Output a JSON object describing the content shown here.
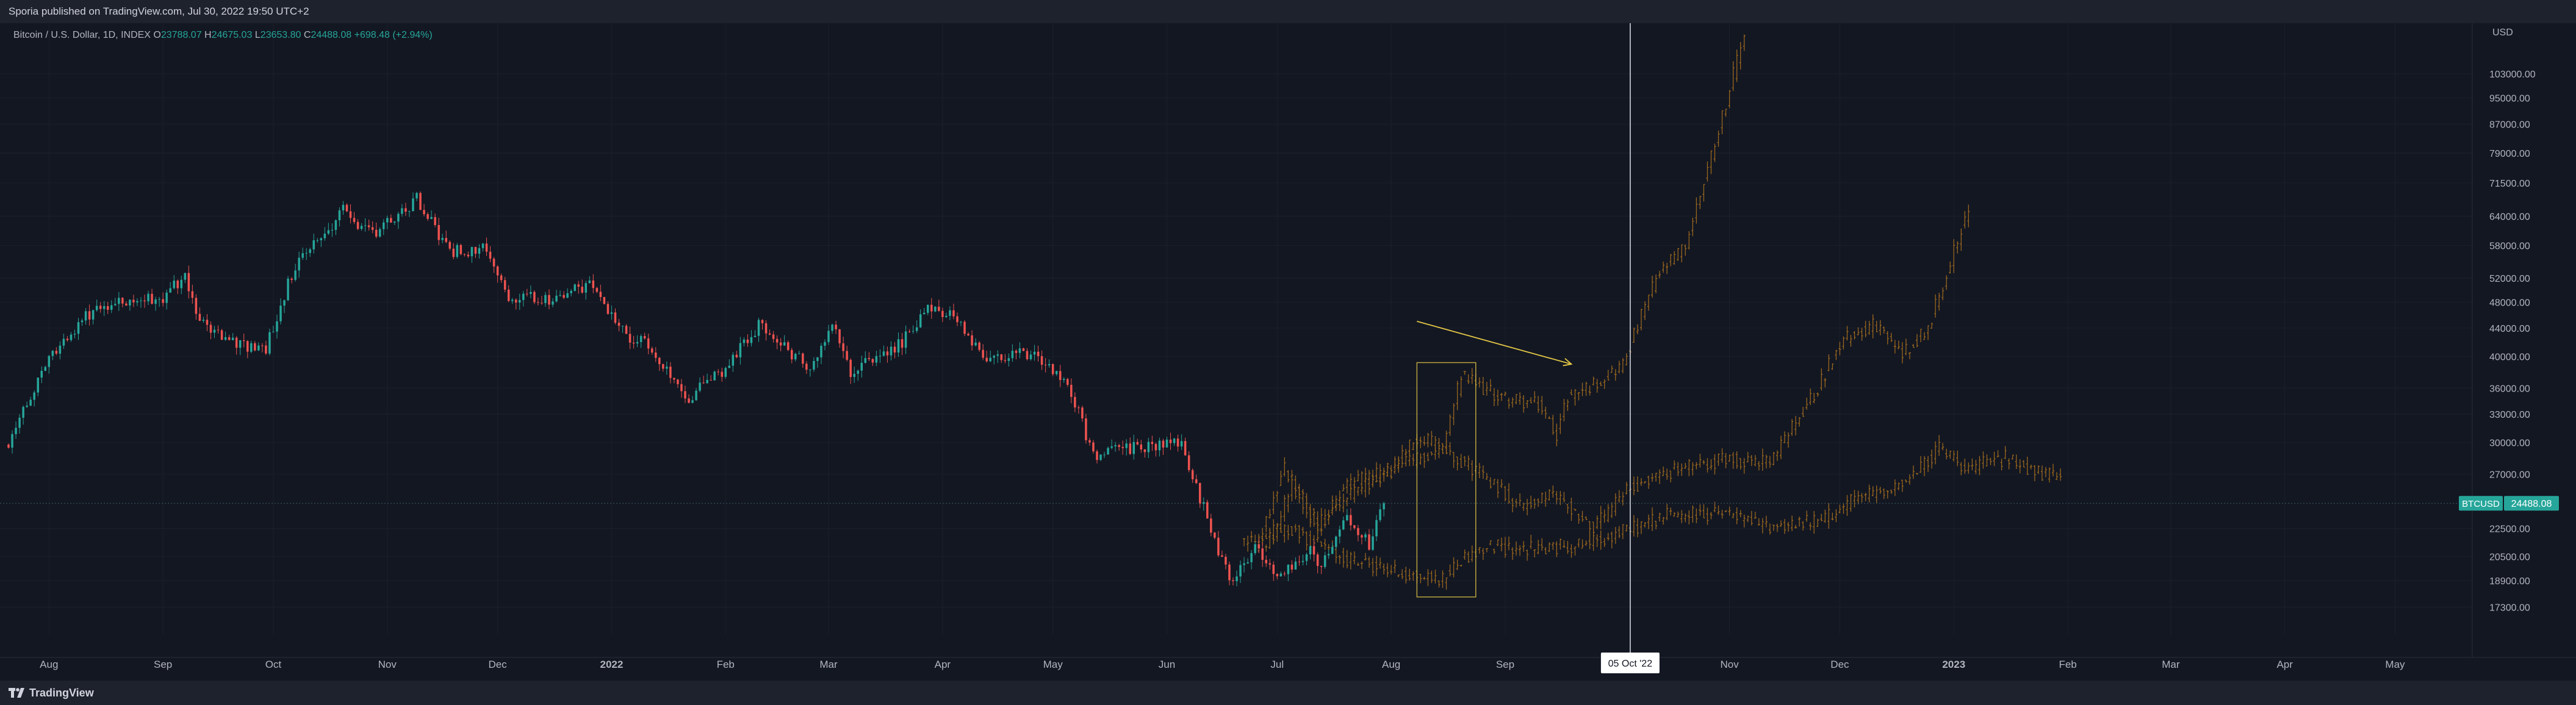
{
  "header": {
    "published": "Sporia published on TradingView.com, Jul 30, 2022 19:50 UTC+2"
  },
  "footer": {
    "brand": "TradingView"
  },
  "colors": {
    "background": "#131722",
    "up": "#26a69a",
    "down": "#ef5350",
    "projection": "#a06a1e",
    "annotation": "#e3c746",
    "price_badge": "#26a69a",
    "crosshair": "#e0e3eb"
  },
  "chart_data": {
    "type": "candlestick",
    "symbol": "Bitcoin / U.S. Dollar, 1D, INDEX",
    "ohlc_summary": {
      "O": "23788.07",
      "H": "24675.03",
      "L": "23653.80",
      "C": "24488.08",
      "change": "+698.48 (+2.94%)"
    },
    "y_scale": "log",
    "y_axis_unit": "USD",
    "y_ticks": [
      103000,
      95000,
      87000,
      79000,
      71500,
      64000,
      58000,
      52000,
      48000,
      44000,
      40000,
      36000,
      33000,
      30000,
      27000,
      22500,
      20500,
      18900,
      17300
    ],
    "y_tick_labels": [
      "103000.00",
      "95000.00",
      "87000.00",
      "79000.00",
      "71500.00",
      "64000.00",
      "58000.00",
      "52000.00",
      "48000.00",
      "44000.00",
      "40000.00",
      "36000.00",
      "33000.00",
      "30000.00",
      "27000.00",
      "22500.00",
      "20500.00",
      "18900.00",
      "17300.00"
    ],
    "ylim": [
      15800,
      122000
    ],
    "x_range": [
      "2021-07-21",
      "2023-05-20"
    ],
    "x_ticks": [
      {
        "date": "2021-08-01",
        "label": "Aug",
        "bold": false
      },
      {
        "date": "2021-09-01",
        "label": "Sep",
        "bold": false
      },
      {
        "date": "2021-10-01",
        "label": "Oct",
        "bold": false
      },
      {
        "date": "2021-11-01",
        "label": "Nov",
        "bold": false
      },
      {
        "date": "2021-12-01",
        "label": "Dec",
        "bold": false
      },
      {
        "date": "2022-01-01",
        "label": "2022",
        "bold": true
      },
      {
        "date": "2022-02-01",
        "label": "Feb",
        "bold": false
      },
      {
        "date": "2022-03-01",
        "label": "Mar",
        "bold": false
      },
      {
        "date": "2022-04-01",
        "label": "Apr",
        "bold": false
      },
      {
        "date": "2022-05-01",
        "label": "May",
        "bold": false
      },
      {
        "date": "2022-06-01",
        "label": "Jun",
        "bold": false
      },
      {
        "date": "2022-07-01",
        "label": "Jul",
        "bold": false
      },
      {
        "date": "2022-08-01",
        "label": "Aug",
        "bold": false
      },
      {
        "date": "2022-09-01",
        "label": "Sep",
        "bold": false
      },
      {
        "date": "2022-11-01",
        "label": "Nov",
        "bold": false
      },
      {
        "date": "2022-12-01",
        "label": "Dec",
        "bold": false
      },
      {
        "date": "2023-01-01",
        "label": "2023",
        "bold": true
      },
      {
        "date": "2023-02-01",
        "label": "Feb",
        "bold": false
      },
      {
        "date": "2023-03-01",
        "label": "Mar",
        "bold": false
      },
      {
        "date": "2023-04-01",
        "label": "Apr",
        "bold": false
      },
      {
        "date": "2023-05-01",
        "label": "May",
        "bold": false
      }
    ],
    "crosshair": {
      "date": "2022-10-05",
      "label": "05 Oct '22"
    },
    "last_price": {
      "symbol": "BTCUSD",
      "value": 24488.08,
      "label": "24488.08"
    },
    "price_anchors": [
      {
        "date": "2021-07-21",
        "close": 29800
      },
      {
        "date": "2021-08-01",
        "close": 39800
      },
      {
        "date": "2021-08-14",
        "close": 47500
      },
      {
        "date": "2021-09-01",
        "close": 48800
      },
      {
        "date": "2021-09-07",
        "close": 52400
      },
      {
        "date": "2021-09-10",
        "close": 45500
      },
      {
        "date": "2021-09-21",
        "close": 41500
      },
      {
        "date": "2021-09-29",
        "close": 41200
      },
      {
        "date": "2021-10-07",
        "close": 54500
      },
      {
        "date": "2021-10-20",
        "close": 65000
      },
      {
        "date": "2021-10-28",
        "close": 60500
      },
      {
        "date": "2021-11-09",
        "close": 67800
      },
      {
        "date": "2021-11-18",
        "close": 57000
      },
      {
        "date": "2021-11-28",
        "close": 57200
      },
      {
        "date": "2021-12-04",
        "close": 49000
      },
      {
        "date": "2021-12-15",
        "close": 48500
      },
      {
        "date": "2021-12-27",
        "close": 50800
      },
      {
        "date": "2022-01-05",
        "close": 43000
      },
      {
        "date": "2022-01-10",
        "close": 41800
      },
      {
        "date": "2022-01-22",
        "close": 35000
      },
      {
        "date": "2022-01-31",
        "close": 38000
      },
      {
        "date": "2022-02-10",
        "close": 44500
      },
      {
        "date": "2022-02-24",
        "close": 38300
      },
      {
        "date": "2022-03-02",
        "close": 44300
      },
      {
        "date": "2022-03-07",
        "close": 38000
      },
      {
        "date": "2022-03-20",
        "close": 41500
      },
      {
        "date": "2022-03-29",
        "close": 47500
      },
      {
        "date": "2022-04-05",
        "close": 45500
      },
      {
        "date": "2022-04-12",
        "close": 40000
      },
      {
        "date": "2022-04-25",
        "close": 40400
      },
      {
        "date": "2022-04-30",
        "close": 38500
      },
      {
        "date": "2022-05-05",
        "close": 36500
      },
      {
        "date": "2022-05-12",
        "close": 28900
      },
      {
        "date": "2022-05-25",
        "close": 29500
      },
      {
        "date": "2022-06-01",
        "close": 30000
      },
      {
        "date": "2022-06-05",
        "close": 29800
      },
      {
        "date": "2022-06-13",
        "close": 22500
      },
      {
        "date": "2022-06-18",
        "close": 19000
      },
      {
        "date": "2022-06-25",
        "close": 21200
      },
      {
        "date": "2022-07-01",
        "close": 19300
      },
      {
        "date": "2022-07-10",
        "close": 20800
      },
      {
        "date": "2022-07-13",
        "close": 19800
      },
      {
        "date": "2022-07-20",
        "close": 23300
      },
      {
        "date": "2022-07-26",
        "close": 21300
      },
      {
        "date": "2022-07-30",
        "close": 24488
      }
    ],
    "projections": [
      {
        "anchors": [
          {
            "date": "2022-06-28",
            "close": 21000
          },
          {
            "date": "2022-07-05",
            "close": 26000
          },
          {
            "date": "2022-07-12",
            "close": 22500
          },
          {
            "date": "2022-07-20",
            "close": 26200
          },
          {
            "date": "2022-07-30",
            "close": 27000
          },
          {
            "date": "2022-08-08",
            "close": 30500
          },
          {
            "date": "2022-08-15",
            "close": 29500
          },
          {
            "date": "2022-08-20",
            "close": 37500
          },
          {
            "date": "2022-08-30",
            "close": 35000
          },
          {
            "date": "2022-09-10",
            "close": 34000
          },
          {
            "date": "2022-09-15",
            "close": 31000
          },
          {
            "date": "2022-09-18",
            "close": 35000
          },
          {
            "date": "2022-09-25",
            "close": 36500
          },
          {
            "date": "2022-10-03",
            "close": 39000
          },
          {
            "date": "2022-10-12",
            "close": 52000
          },
          {
            "date": "2022-10-20",
            "close": 58000
          },
          {
            "date": "2022-10-25",
            "close": 72000
          },
          {
            "date": "2022-11-01",
            "close": 98000
          },
          {
            "date": "2022-11-05",
            "close": 118000
          }
        ]
      },
      {
        "anchors": [
          {
            "date": "2022-06-25",
            "close": 21000
          },
          {
            "date": "2022-07-03",
            "close": 27500
          },
          {
            "date": "2022-07-12",
            "close": 22800
          },
          {
            "date": "2022-07-22",
            "close": 25500
          },
          {
            "date": "2022-08-02",
            "close": 27500
          },
          {
            "date": "2022-08-15",
            "close": 29500
          },
          {
            "date": "2022-08-28",
            "close": 26500
          },
          {
            "date": "2022-09-05",
            "close": 24300
          },
          {
            "date": "2022-09-15",
            "close": 25200
          },
          {
            "date": "2022-09-25",
            "close": 22500
          },
          {
            "date": "2022-10-05",
            "close": 25800
          },
          {
            "date": "2022-10-15",
            "close": 27200
          },
          {
            "date": "2022-11-01",
            "close": 28500
          },
          {
            "date": "2022-11-12",
            "close": 28000
          },
          {
            "date": "2022-11-25",
            "close": 36000
          },
          {
            "date": "2022-12-01",
            "close": 42000
          },
          {
            "date": "2022-12-10",
            "close": 44500
          },
          {
            "date": "2022-12-18",
            "close": 40500
          },
          {
            "date": "2022-12-25",
            "close": 44000
          },
          {
            "date": "2022-12-30",
            "close": 53000
          },
          {
            "date": "2023-01-05",
            "close": 66000
          }
        ]
      },
      {
        "anchors": [
          {
            "date": "2022-06-22",
            "close": 21500
          },
          {
            "date": "2022-07-05",
            "close": 22500
          },
          {
            "date": "2022-07-18",
            "close": 20500
          },
          {
            "date": "2022-08-05",
            "close": 19300
          },
          {
            "date": "2022-08-15",
            "close": 19000
          },
          {
            "date": "2022-08-20",
            "close": 20300
          },
          {
            "date": "2022-08-28",
            "close": 21200
          },
          {
            "date": "2022-09-10",
            "close": 21000
          },
          {
            "date": "2022-09-25",
            "close": 21500
          },
          {
            "date": "2022-10-05",
            "close": 22500
          },
          {
            "date": "2022-10-15",
            "close": 23600
          },
          {
            "date": "2022-11-01",
            "close": 23600
          },
          {
            "date": "2022-11-10",
            "close": 22700
          },
          {
            "date": "2022-11-25",
            "close": 23000
          },
          {
            "date": "2022-12-05",
            "close": 24800
          },
          {
            "date": "2022-12-20",
            "close": 26500
          },
          {
            "date": "2022-12-28",
            "close": 29500
          },
          {
            "date": "2023-01-05",
            "close": 27500
          },
          {
            "date": "2023-01-15",
            "close": 28500
          },
          {
            "date": "2023-01-25",
            "close": 27000
          },
          {
            "date": "2023-01-30",
            "close": 26500
          }
        ]
      }
    ],
    "annotations": {
      "rectangle": {
        "start": "2022-08-08",
        "end": "2022-08-24",
        "low": 17900,
        "high": 39200
      },
      "arrow": {
        "start_date": "2022-08-08",
        "start_price": 45000,
        "end_date": "2022-09-19",
        "end_price": 39000
      }
    }
  }
}
